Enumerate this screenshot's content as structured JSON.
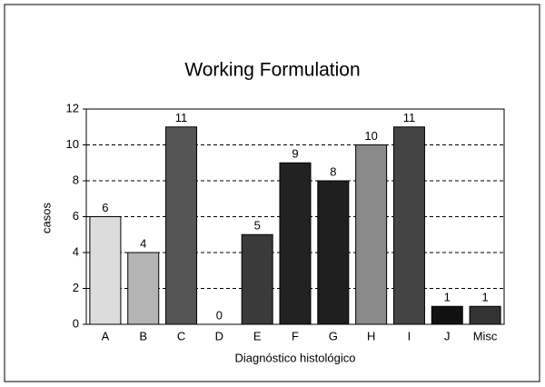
{
  "chart_data": {
    "type": "bar",
    "title": "Working Formulation",
    "x_label": "Diagnóstico histológico",
    "y_label": "casos",
    "categories": [
      "A",
      "B",
      "C",
      "D",
      "E",
      "F",
      "G",
      "H",
      "I",
      "J",
      "Misc"
    ],
    "values": [
      6,
      4,
      11,
      0,
      5,
      9,
      8,
      10,
      11,
      1,
      1
    ],
    "colors": [
      "#dcdcdc",
      "#b4b4b4",
      "#555555",
      "#666666",
      "#3a3a3a",
      "#222222",
      "#1e1e1e",
      "#8a8a8a",
      "#444444",
      "#111111",
      "#333333"
    ],
    "ylim": [
      0,
      12
    ],
    "yticks": [
      0,
      2,
      4,
      6,
      8,
      10,
      12
    ],
    "grid": true
  }
}
